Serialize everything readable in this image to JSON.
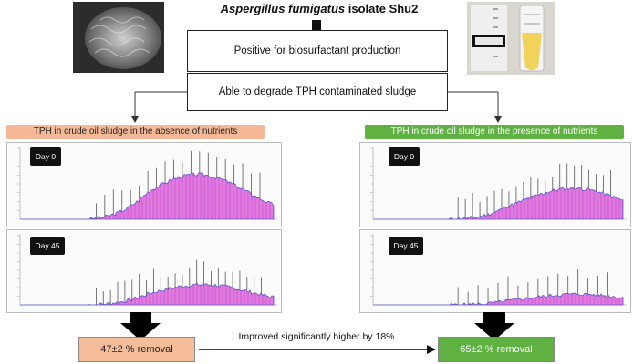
{
  "header": {
    "title_italic": "Aspergillus fumigatus",
    "title_rest": " isolate Shu2"
  },
  "boxes": {
    "biosurfactant": "Positive for biosurfactant production",
    "degrade": "Able to degrade TPH contaminated sludge"
  },
  "left": {
    "tag": "TPH in crude oil sludge in the absence of nutrients",
    "day0": "Day 0",
    "day45": "Day 45",
    "result": "47±2 % removal"
  },
  "right": {
    "tag": "TPH in crude oil sludge in the presence of nutrients",
    "day0": "Day 0",
    "day45": "Day 45",
    "result": "65±2 % removal"
  },
  "comparison": "Improved significantly higher by 18%",
  "colors": {
    "orange": "#f6b998",
    "green": "#5fb141",
    "chromatogram_fill": "#d34fd3",
    "chromatogram_line": "#5a5ad0"
  },
  "icons": {
    "arrow": "black-down-arrow-icon"
  }
}
